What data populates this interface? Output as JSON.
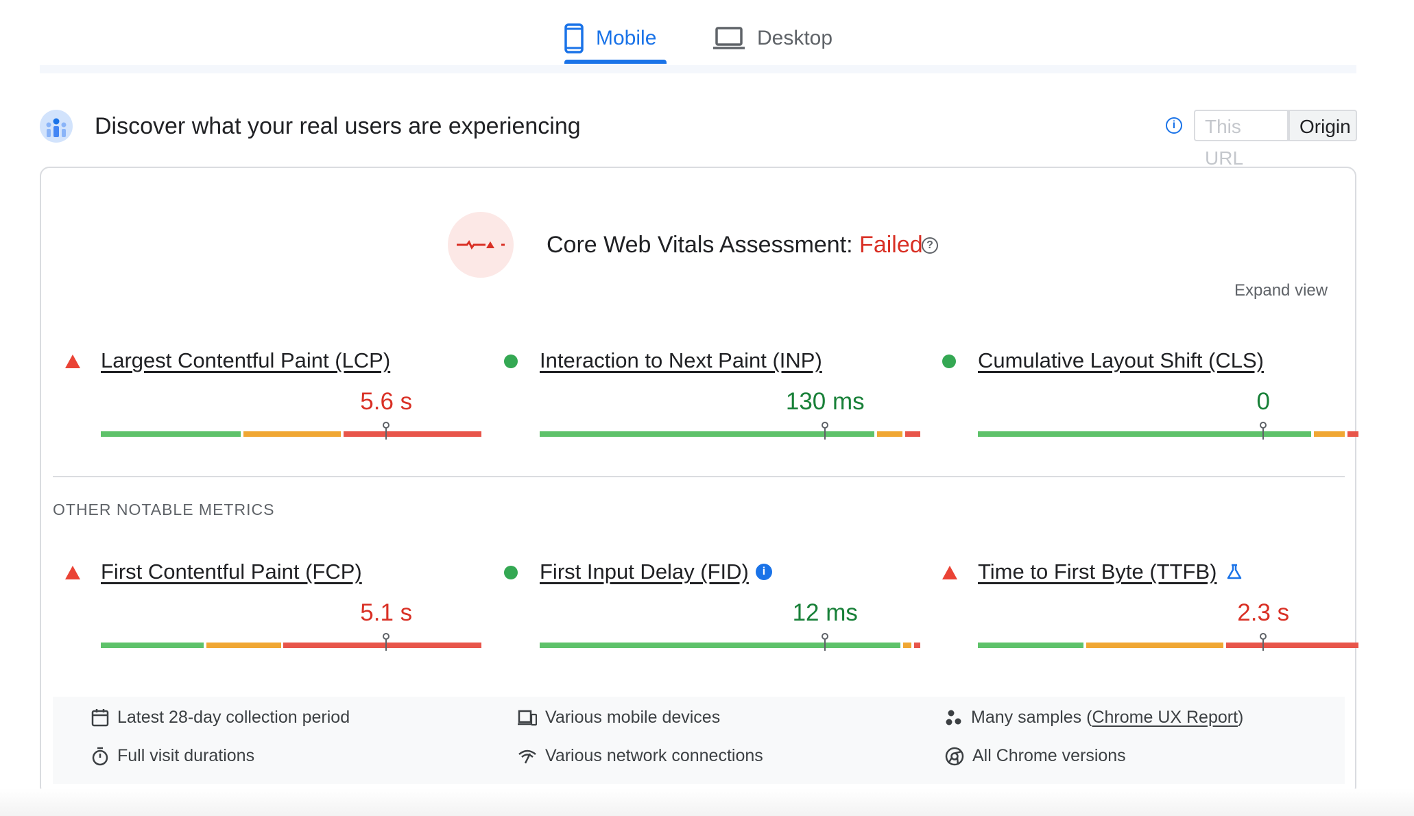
{
  "tabs": {
    "mobile": "Mobile",
    "desktop": "Desktop",
    "active": "mobile"
  },
  "header": {
    "title": "Discover what your real users are experiencing",
    "toggle_this_url": "This URL",
    "toggle_origin": "Origin",
    "selected_toggle": "Origin"
  },
  "assessment": {
    "label": "Core Web Vitals Assessment: ",
    "status": "Failed",
    "expand_label": "Expand view"
  },
  "core_metrics": [
    {
      "title": "Largest Contentful Paint (LCP)",
      "value": "5.6 s",
      "status": "poor",
      "marker": 0.75,
      "segments": [
        {
          "color": "good",
          "start": 0.0,
          "end": 0.368
        },
        {
          "color": "needs-improvement",
          "start": 0.375,
          "end": 0.63
        },
        {
          "color": "poor",
          "start": 0.637,
          "end": 1.0
        }
      ]
    },
    {
      "title": "Interaction to Next Paint (INP)",
      "value": "130 ms",
      "status": "good",
      "marker": 0.75,
      "segments": [
        {
          "color": "good",
          "start": 0.0,
          "end": 0.88
        },
        {
          "color": "needs-improvement",
          "start": 0.887,
          "end": 0.953
        },
        {
          "color": "poor",
          "start": 0.96,
          "end": 1.0
        }
      ]
    },
    {
      "title": "Cumulative Layout Shift (CLS)",
      "value": "0",
      "status": "good",
      "marker": 0.75,
      "segments": [
        {
          "color": "good",
          "start": 0.0,
          "end": 0.876
        },
        {
          "color": "needs-improvement",
          "start": 0.883,
          "end": 0.964
        },
        {
          "color": "poor",
          "start": 0.971,
          "end": 1.0
        }
      ]
    }
  ],
  "other_metrics_label": "OTHER NOTABLE METRICS",
  "other_metrics": [
    {
      "title": "First Contentful Paint (FCP)",
      "value": "5.1 s",
      "status": "poor",
      "marker": 0.75,
      "segments": [
        {
          "color": "good",
          "start": 0.0,
          "end": 0.27
        },
        {
          "color": "needs-improvement",
          "start": 0.277,
          "end": 0.473
        },
        {
          "color": "poor",
          "start": 0.48,
          "end": 1.0
        }
      ]
    },
    {
      "title": "First Input Delay (FID)",
      "value": "12 ms",
      "status": "good",
      "marker": 0.75,
      "segments": [
        {
          "color": "good",
          "start": 0.0,
          "end": 0.948
        },
        {
          "color": "needs-improvement",
          "start": 0.955,
          "end": 0.976
        },
        {
          "color": "poor",
          "start": 0.983,
          "end": 1.0
        }
      ]
    },
    {
      "title": "Time to First Byte (TTFB)",
      "value": "2.3 s",
      "status": "poor",
      "marker": 0.75,
      "segments": [
        {
          "color": "good",
          "start": 0.0,
          "end": 0.278
        },
        {
          "color": "needs-improvement",
          "start": 0.285,
          "end": 0.645
        },
        {
          "color": "poor",
          "start": 0.652,
          "end": 1.0
        }
      ]
    }
  ],
  "footer": {
    "collection_period": "Latest 28-day collection period",
    "visit_durations": "Full visit durations",
    "devices": "Various mobile devices",
    "network": "Various network connections",
    "samples_prefix": "Many samples (",
    "samples_link": "Chrome UX Report",
    "samples_suffix": ")",
    "chrome_versions": "All Chrome versions"
  },
  "colors": {
    "accent": "#1a73e8",
    "good": "#5ec26a",
    "needs-improvement": "#f0a733",
    "poor": "#e8554a",
    "fail_text": "#d93025",
    "good_text": "#188038"
  },
  "icons": {
    "mobile_tab": "smartphone-icon",
    "desktop_tab": "laptop-icon",
    "header": "crux-users-icon",
    "info": "info-icon",
    "help": "help-icon",
    "poor": "warning-triangle-icon",
    "good": "good-circle-icon",
    "experimental": "flask-icon"
  }
}
